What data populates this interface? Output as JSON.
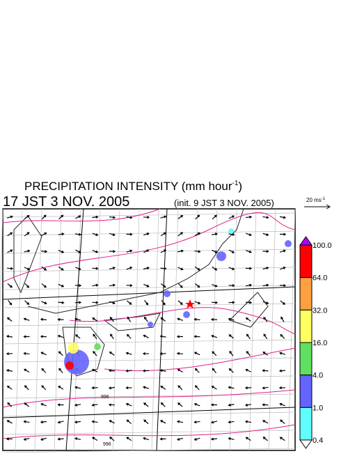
{
  "header": {
    "title": "PRECIPITATION INTENSITY (mm hour",
    "title_sup": "-1",
    "title_end": ")",
    "valid_time": "17 JST 3 NOV. 2005",
    "init_time": "(init. 9 JST 3 NOV. 2005)"
  },
  "wind_legend": {
    "label": "20 ms",
    "label_sup": "-1"
  },
  "colorbar": {
    "ticks": [
      {
        "value": 100,
        "label": "100.0"
      },
      {
        "value": 64,
        "label": "64.0"
      },
      {
        "value": 32,
        "label": "32.0"
      },
      {
        "value": 16,
        "label": "16.0"
      },
      {
        "value": 4,
        "label": "4.0"
      },
      {
        "value": 1,
        "label": "1.0"
      },
      {
        "value": 0.4,
        "label": "0.4"
      }
    ],
    "colors": [
      "#ff0000",
      "#ffa040",
      "#ffff60",
      "#60e060",
      "#6464ff",
      "#60ffff"
    ],
    "over_color": "#b000ff",
    "under_color": "#ffffff"
  },
  "isobar_labels": [
    "996",
    "996"
  ]
}
